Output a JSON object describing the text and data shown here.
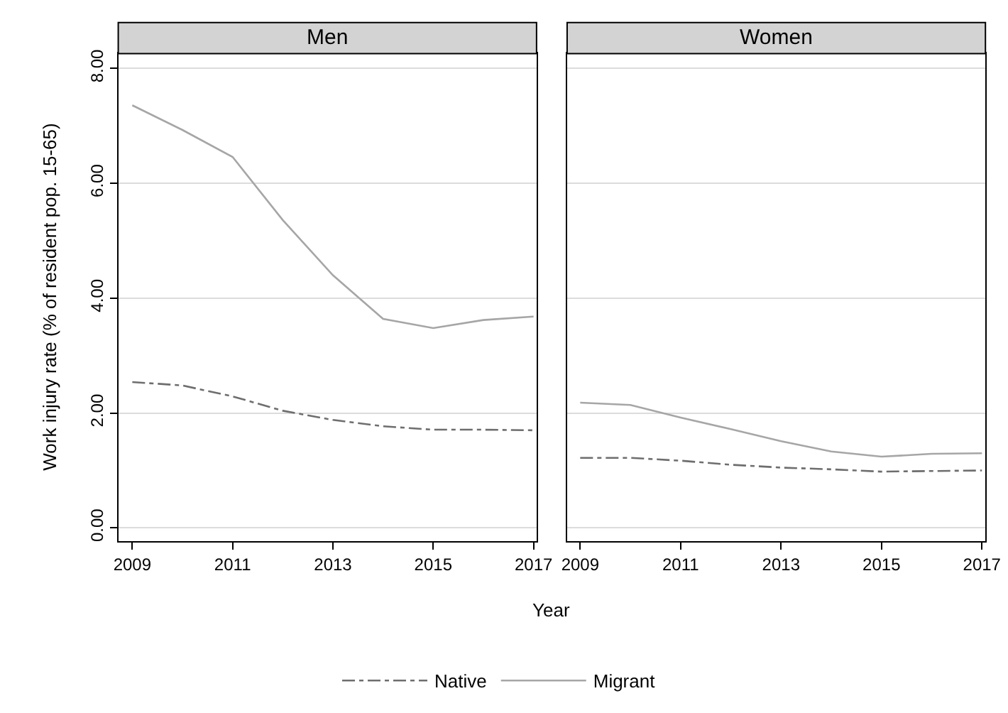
{
  "chart_data": [
    {
      "type": "line",
      "title": "Men",
      "ylabel": "Work injury rate (% of resident pop. 15-65)",
      "xlabel": "Year",
      "x": [
        2009,
        2010,
        2011,
        2012,
        2013,
        2014,
        2015,
        2016,
        2017
      ],
      "series": [
        {
          "name": "Native",
          "color": "#6e6e6e",
          "line_style": "dashdot",
          "values": [
            2.54,
            2.48,
            2.29,
            2.04,
            1.88,
            1.77,
            1.71,
            1.71,
            1.7
          ]
        },
        {
          "name": "Migrant",
          "color": "#a6a6a6",
          "line_style": "solid",
          "values": [
            7.36,
            6.93,
            6.46,
            5.36,
            4.4,
            3.64,
            3.48,
            3.62,
            3.68
          ]
        }
      ],
      "xlim": [
        2008.72,
        2017.06
      ],
      "xticks": [
        2009,
        2011,
        2013,
        2015,
        2017
      ],
      "ylim": [
        -0.23,
        8.26
      ],
      "yticks": [
        {
          "value": 0,
          "label": "0.00"
        },
        {
          "value": 2,
          "label": "2.00"
        },
        {
          "value": 4,
          "label": "4.00"
        },
        {
          "value": 6,
          "label": "6.00"
        },
        {
          "value": 8,
          "label": "8.00"
        }
      ],
      "grid": "y",
      "legend": "bottom",
      "marker": "none"
    },
    {
      "type": "line",
      "title": "Women",
      "x": [
        2009,
        2010,
        2011,
        2012,
        2013,
        2014,
        2015,
        2016,
        2017
      ],
      "series": [
        {
          "color": "#6e6e6e",
          "line_style": "dashdot",
          "values": [
            1.22,
            1.22,
            1.17,
            1.1,
            1.05,
            1.02,
            0.98,
            0.99,
            1.0
          ]
        },
        {
          "color": "#a6a6a6",
          "line_style": "solid",
          "values": [
            2.18,
            2.14,
            1.92,
            1.72,
            1.51,
            1.33,
            1.24,
            1.29,
            1.3
          ]
        }
      ],
      "xlim": [
        2008.74,
        2017.07
      ],
      "xticks": [
        2009,
        2011,
        2013,
        2015,
        2017
      ],
      "ylim": [
        -0.23,
        8.26
      ],
      "yticks": [
        {
          "value": 0,
          "label": null
        },
        {
          "value": 2,
          "label": null
        },
        {
          "value": 4,
          "label": null
        },
        {
          "value": 6,
          "label": null
        },
        {
          "value": 8,
          "label": null
        }
      ],
      "grid": "y",
      "legend": "bottom",
      "marker": "none",
      "tick_labels": "x"
    }
  ]
}
